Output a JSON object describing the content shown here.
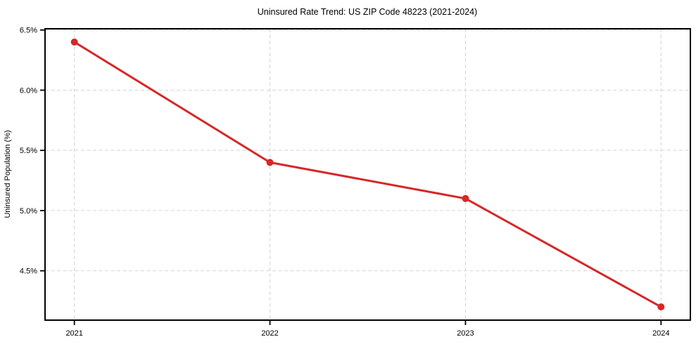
{
  "chart_data": {
    "type": "line",
    "title": "Uninsured Rate Trend: US ZIP Code 48223 (2021-2024)",
    "xlabel": "",
    "ylabel": "Uninsured Population (%)",
    "x": [
      2021,
      2022,
      2023,
      2024
    ],
    "values": [
      6.4,
      5.4,
      5.1,
      4.2
    ],
    "xticks": [
      2021,
      2022,
      2023,
      2024
    ],
    "xtick_labels": [
      "2021",
      "2022",
      "2023",
      "2024"
    ],
    "yticks": [
      4.5,
      5.0,
      5.5,
      6.0,
      6.5
    ],
    "ytick_labels": [
      "4.5%",
      "5.0%",
      "5.5%",
      "6.0%",
      "6.5%"
    ],
    "xlim": [
      2020.85,
      2024.15
    ],
    "ylim": [
      4.09,
      6.51
    ],
    "grid": true,
    "legend": false,
    "line_color": "#d62728",
    "marker": "circle",
    "grid_color": "#d9d9d9",
    "spine_color": "#000000",
    "text_color": "#000000",
    "background_color": "#ffffff"
  }
}
